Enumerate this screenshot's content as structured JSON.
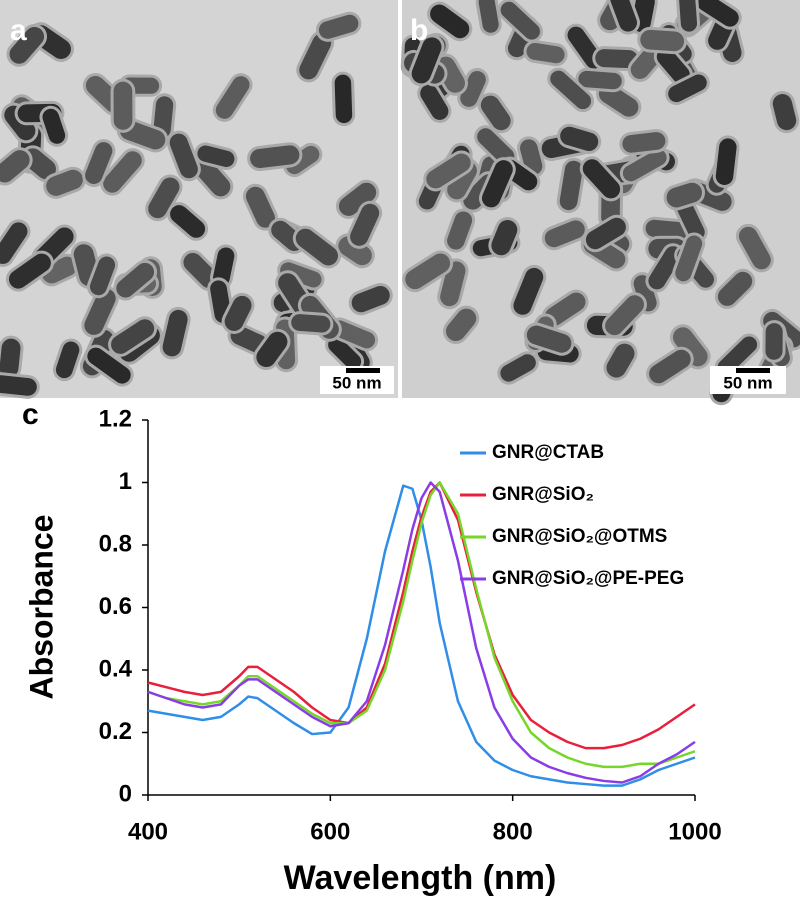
{
  "panels": {
    "labels": [
      "a",
      "b",
      "c"
    ],
    "scale_bars": [
      "50 nm",
      "50 nm"
    ]
  },
  "chart_data": {
    "type": "line",
    "xlabel": "Wavelength (nm)",
    "ylabel": "Absorbance",
    "x": [
      400,
      420,
      440,
      460,
      480,
      500,
      510,
      520,
      540,
      560,
      580,
      600,
      620,
      640,
      660,
      680,
      690,
      700,
      710,
      720,
      740,
      760,
      780,
      800,
      820,
      840,
      860,
      880,
      900,
      920,
      940,
      960,
      980,
      1000
    ],
    "series": [
      {
        "name": "GNR@CTAB",
        "color": "#2f8ee8",
        "values": [
          0.27,
          0.26,
          0.25,
          0.24,
          0.25,
          0.29,
          0.315,
          0.31,
          0.27,
          0.23,
          0.195,
          0.2,
          0.28,
          0.5,
          0.78,
          0.99,
          0.98,
          0.88,
          0.73,
          0.55,
          0.3,
          0.17,
          0.11,
          0.08,
          0.06,
          0.05,
          0.04,
          0.035,
          0.03,
          0.03,
          0.05,
          0.08,
          0.1,
          0.12
        ]
      },
      {
        "name": "GNR@SiO₂",
        "color": "#e8203c",
        "values": [
          0.36,
          0.345,
          0.33,
          0.32,
          0.33,
          0.38,
          0.41,
          0.41,
          0.37,
          0.33,
          0.28,
          0.24,
          0.23,
          0.28,
          0.42,
          0.65,
          0.78,
          0.89,
          0.97,
          1.0,
          0.88,
          0.65,
          0.45,
          0.32,
          0.24,
          0.2,
          0.17,
          0.15,
          0.15,
          0.16,
          0.18,
          0.21,
          0.25,
          0.29
        ]
      },
      {
        "name": "GNR@SiO₂@OTMS",
        "color": "#76d62a",
        "values": [
          0.33,
          0.31,
          0.3,
          0.29,
          0.3,
          0.35,
          0.38,
          0.38,
          0.34,
          0.3,
          0.26,
          0.23,
          0.23,
          0.27,
          0.4,
          0.62,
          0.75,
          0.87,
          0.96,
          1.0,
          0.9,
          0.66,
          0.44,
          0.3,
          0.2,
          0.15,
          0.12,
          0.1,
          0.09,
          0.09,
          0.1,
          0.1,
          0.12,
          0.14
        ]
      },
      {
        "name": "GNR@SiO₂@PE-PEG",
        "color": "#8a3de6",
        "values": [
          0.33,
          0.31,
          0.29,
          0.28,
          0.29,
          0.35,
          0.37,
          0.37,
          0.33,
          0.29,
          0.25,
          0.22,
          0.23,
          0.3,
          0.48,
          0.72,
          0.85,
          0.95,
          1.0,
          0.97,
          0.75,
          0.47,
          0.28,
          0.18,
          0.12,
          0.09,
          0.07,
          0.055,
          0.045,
          0.04,
          0.06,
          0.1,
          0.13,
          0.17
        ]
      }
    ],
    "xlim": [
      400,
      1000
    ],
    "xticks": [
      400,
      600,
      800,
      1000
    ],
    "ylim": [
      0,
      1.2
    ],
    "yticks": [
      0,
      0.2,
      0.4,
      0.6,
      0.8,
      1,
      1.2
    ],
    "grid": false,
    "legend": "upper right"
  }
}
